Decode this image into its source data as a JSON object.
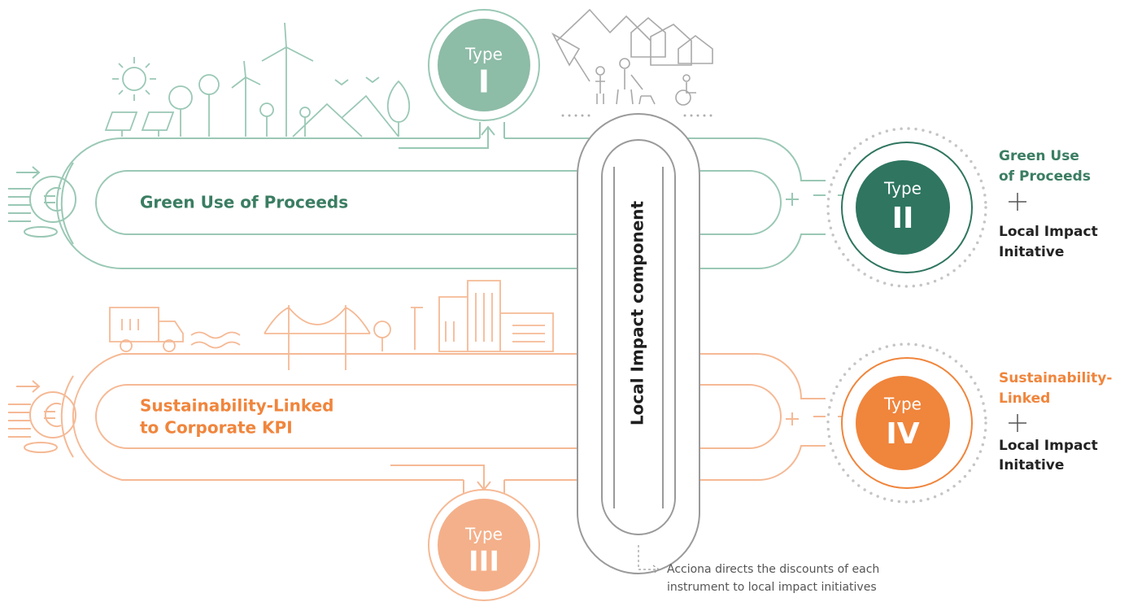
{
  "tracks": [
    {
      "label_lines": [
        "Green Use of Proceeds"
      ]
    },
    {
      "label_lines": [
        "Sustainability-Linked",
        "to Corporate KPI"
      ]
    }
  ],
  "local_component": {
    "label": "Local Impact component"
  },
  "types": [
    {
      "word": "Type",
      "numeral": "I"
    },
    {
      "word": "Type",
      "numeral": "II"
    },
    {
      "word": "Type",
      "numeral": "III"
    },
    {
      "word": "Type",
      "numeral": "IV"
    }
  ],
  "results": [
    {
      "first_lines": [
        "Green Use",
        "of Proceeds"
      ],
      "second_lines": [
        "Local Impact",
        "Initative"
      ]
    },
    {
      "first_lines": [
        "Sustainability-",
        "Linked"
      ],
      "second_lines": [
        "Local Impact",
        "Initative"
      ]
    }
  ],
  "note": {
    "lines": [
      "Acciona directs the discounts of each",
      "instrument to local impact initiatives"
    ]
  }
}
